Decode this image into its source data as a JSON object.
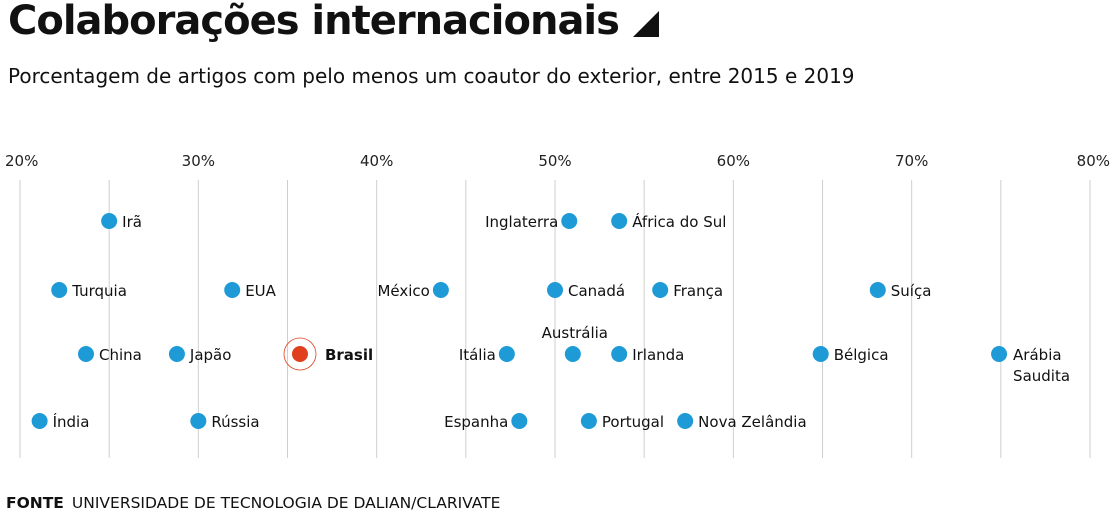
{
  "title": "Colaborações internacionais",
  "subtitle": "Porcentagem de artigos com pelo menos um coautor do exterior, entre 2015 e 2019",
  "source_label": "FONTE",
  "source_text": "UNIVERSIDADE DE TECNOLOGIA DE DALIAN/CLARIVATE",
  "colors": {
    "point": "#1e9bd7",
    "highlight": "#e0401e",
    "grid": "#cfcfcf"
  },
  "chart_data": {
    "type": "scatter",
    "xlim": [
      20,
      80
    ],
    "x_ticks": [
      "20%",
      "30%",
      "40%",
      "50%",
      "60%",
      "70%",
      "80%"
    ],
    "grid": true,
    "points": [
      {
        "label": "Irã",
        "value": 25.0,
        "row": 1
      },
      {
        "label": "Inglaterra",
        "value": 50.8,
        "row": 1
      },
      {
        "label": "África do Sul",
        "value": 53.6,
        "row": 1
      },
      {
        "label": "Turquia",
        "value": 22.2,
        "row": 2
      },
      {
        "label": "EUA",
        "value": 31.9,
        "row": 2
      },
      {
        "label": "México",
        "value": 43.6,
        "row": 2
      },
      {
        "label": "Canadá",
        "value": 50.0,
        "row": 2
      },
      {
        "label": "França",
        "value": 55.9,
        "row": 2
      },
      {
        "label": "Suíça",
        "value": 68.1,
        "row": 2
      },
      {
        "label": "China",
        "value": 23.7,
        "row": 3
      },
      {
        "label": "Japão",
        "value": 28.8,
        "row": 3
      },
      {
        "label": "Brasil",
        "value": 35.7,
        "row": 3,
        "highlight": true
      },
      {
        "label": "Itália",
        "value": 47.3,
        "row": 3
      },
      {
        "label": "Austrália",
        "value": 51.0,
        "row": 3
      },
      {
        "label": "Irlanda",
        "value": 53.6,
        "row": 3
      },
      {
        "label": "Bélgica",
        "value": 64.9,
        "row": 3
      },
      {
        "label": "Arábia Saudita",
        "value": 74.9,
        "row": 3
      },
      {
        "label": "Índia",
        "value": 21.1,
        "row": 4
      },
      {
        "label": "Rússia",
        "value": 30.0,
        "row": 4
      },
      {
        "label": "Espanha",
        "value": 48.0,
        "row": 4
      },
      {
        "label": "Portugal",
        "value": 51.9,
        "row": 4
      },
      {
        "label": "Nova Zelândia",
        "value": 57.3,
        "row": 4
      }
    ]
  }
}
